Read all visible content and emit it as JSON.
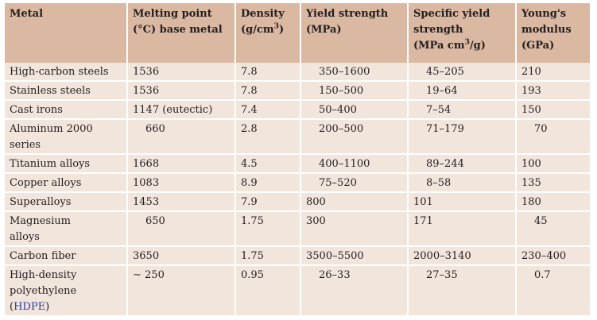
{
  "headers": [
    "Metal",
    "Melting point (°C) base metal",
    "Density (g/cm3)",
    "Yield strength (MPa)",
    "Specific yield strength (MPa cm3/g)",
    "Young's modulus (GPa)"
  ],
  "header_parts": {
    "metal": "Metal",
    "melting_1": "Melting point",
    "melting_2": "(°C) base metal",
    "density_1": "Density",
    "density_2": "(g/cm",
    "density_sup": "3",
    "density_3": ")",
    "yield_1": "Yield strength",
    "yield_2": "(MPa)",
    "spec_1": "Specific yield",
    "spec_2": "strength",
    "spec_3": "(MPa cm",
    "spec_sup": "3",
    "spec_4": "/g)",
    "young_1": "Young's",
    "young_2": "modulus",
    "young_3": "(GPa)"
  },
  "rows": [
    {
      "metal": "High-carbon steels",
      "melting": "1536",
      "density": "7.8",
      "yield": "350–1600",
      "specific": "45–205",
      "young": "210"
    },
    {
      "metal": "Stainless steels",
      "melting": "1536",
      "density": "7.8",
      "yield": "150–500",
      "specific": "19–64",
      "young": "193"
    },
    {
      "metal": "Cast irons",
      "melting": "1147 (eutectic)",
      "density": "7.4",
      "yield": "50–400",
      "specific": "7–54",
      "young": "150"
    },
    {
      "metal_1": "Aluminum 2000",
      "metal_2": "series",
      "melting": "660",
      "density": "2.8",
      "yield": "200–500",
      "specific": "71–179",
      "young": "70"
    },
    {
      "metal": "Titanium alloys",
      "melting": "1668",
      "density": "4.5",
      "yield": "400–1100",
      "specific": "89–244",
      "young": "100"
    },
    {
      "metal": "Copper alloys",
      "melting": "1083",
      "density": "8.9",
      "yield": "75–520",
      "specific": "8–58",
      "young": "135"
    },
    {
      "metal": "Superalloys",
      "melting": "1453",
      "density": "7.9",
      "yield": "800",
      "specific": "101",
      "young": "180"
    },
    {
      "metal_1": "Magnesium",
      "metal_2": "alloys",
      "melting": "650",
      "density": "1.75",
      "yield": "300",
      "specific": "171",
      "young": "45"
    },
    {
      "metal": "Carbon fiber",
      "melting": "3650",
      "density": "1.75",
      "yield": "3500–5500",
      "specific": "2000–3140",
      "young": "230–400"
    },
    {
      "metal_1": "High-density",
      "metal_2": "polyethylene",
      "metal_3_open": "(",
      "metal_3_link": "HDPE",
      "metal_3_close": ")",
      "melting": "∼ 250",
      "density": "0.95",
      "yield": "26–33",
      "specific": "27–35",
      "young": "0.7"
    }
  ]
}
